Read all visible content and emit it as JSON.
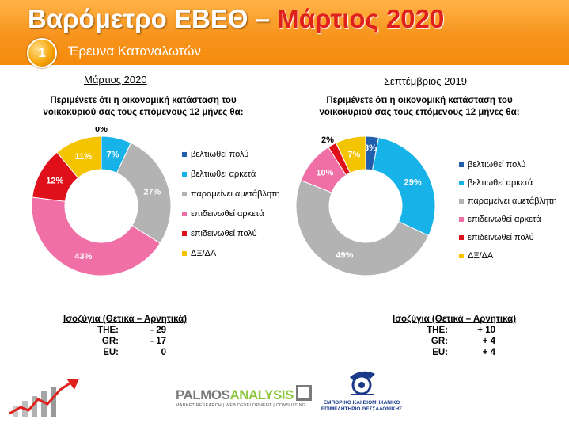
{
  "header": {
    "title_main": "Βαρόμετρο ΕΒΕΘ – ",
    "title_highlight": "Μάρτιος 2020",
    "section_number": "1",
    "section_title": "Έρευνα Καταναλωτών"
  },
  "colors": {
    "header_orange": "#f7941d",
    "title_red": "#e0201b",
    "series": [
      "#1f5fad",
      "#17b3e8",
      "#b3b3b3",
      "#f06fa6",
      "#e0101b",
      "#f5c400"
    ]
  },
  "legend_items": [
    "βελτιωθεί πολύ",
    "βελτιωθεί αρκετά",
    "παραμείνει αμετάβλητη",
    "επιδεινωθεί αρκετά",
    "επιδεινωθεί πολύ",
    "ΔΞ/ΔΑ"
  ],
  "chart_data": [
    {
      "type": "pie",
      "title": "Μάρτιος 2020",
      "subtitle": "Περιμένετε ότι η οικονομική κατάσταση του νοικοκυριού σας τους επόμενους 12 μήνες θα:",
      "categories": [
        "βελτιωθεί πολύ",
        "βελτιωθεί αρκετά",
        "παραμείνει αμετάβλητη",
        "επιδεινωθεί αρκετά",
        "επιδεινωθεί πολύ",
        "ΔΞ/ΔΑ"
      ],
      "values": [
        0,
        7,
        27,
        43,
        12,
        11
      ],
      "labels": [
        "0%",
        "7%",
        "27%",
        "43%",
        "12%",
        "11%"
      ],
      "legend_position": "right"
    },
    {
      "type": "pie",
      "title": "Σεπτέμβριος 2019",
      "subtitle": "Περιμένετε ότι η οικονομική κατάσταση του νοικοκυριού σας τους επόμενους 12 μήνες θα:",
      "categories": [
        "βελτιωθεί πολύ",
        "βελτιωθεί αρκετά",
        "παραμείνει αμετάβλητη",
        "επιδεινωθεί αρκετά",
        "επιδεινωθεί πολύ",
        "ΔΞ/ΔΑ"
      ],
      "values": [
        3,
        29,
        49,
        10,
        2,
        7
      ],
      "labels": [
        "3%",
        "29%",
        "49%",
        "10%",
        "2%",
        "7%"
      ],
      "legend_position": "right"
    }
  ],
  "balances": [
    {
      "title": "Ισοζύγια (Θετικά – Αρνητικά)",
      "rows": [
        {
          "label": "THE:",
          "value": "- 29"
        },
        {
          "label": "GR:",
          "value": "- 17"
        },
        {
          "label": "EU:",
          "value": "0"
        }
      ]
    },
    {
      "title": "Ισοζύγια (Θετικά – Αρνητικά)",
      "rows": [
        {
          "label": "THE:",
          "value": "+ 10"
        },
        {
          "label": "GR:",
          "value": "+ 4"
        },
        {
          "label": "EU:",
          "value": "+ 4"
        }
      ]
    }
  ],
  "footer": {
    "palmos_part1": "PALMOS",
    "palmos_part2": "ANALYSIS",
    "palmos_tagline": "MARKET RESEARCH | WEB DEVELOPMENT | CONSULTING",
    "ebeth_name": "ΕΜΠΟΡΙΚΟ ΚΑΙ ΒΙΟΜΗΧΑΝΙΚΟ ΕΠΙΜΕΛΗΤΗΡΙΟ ΘΕΣΣΑΛΟΝΙΚΗΣ"
  }
}
